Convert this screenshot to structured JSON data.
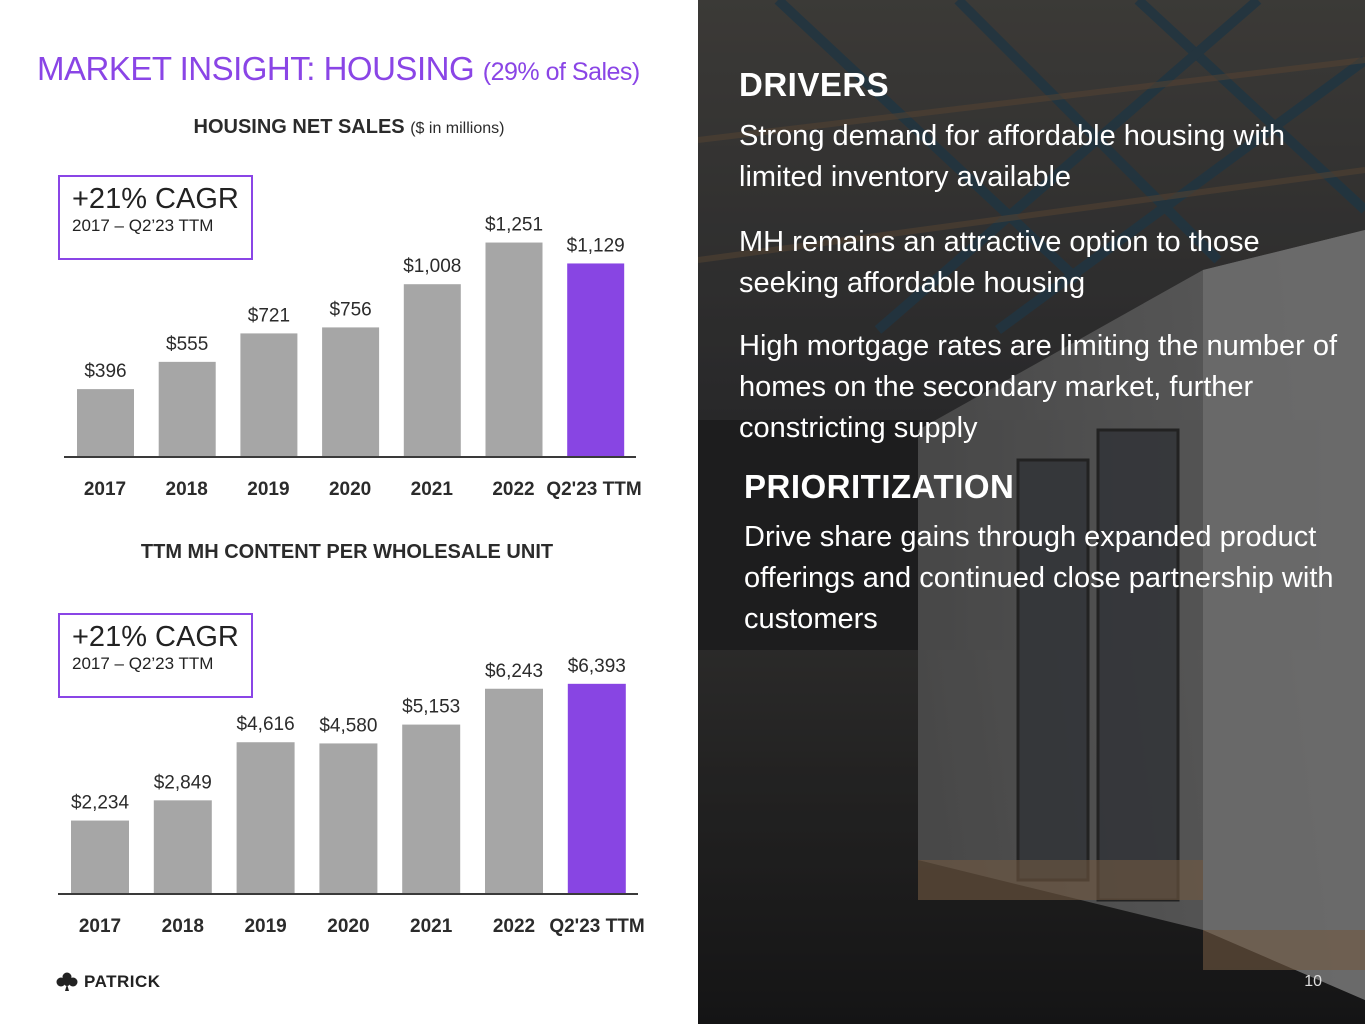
{
  "header": {
    "title": "MARKET INSIGHT: HOUSING",
    "title_sub": "(29% of Sales)"
  },
  "chart1": {
    "title": "HOUSING NET SALES",
    "title_unit": "($ in millions)",
    "cagr": "+21% CAGR",
    "cagr_period": "2017 – Q2’23 TTM"
  },
  "chart2": {
    "title": "TTM MH CONTENT PER WHOLESALE UNIT",
    "cagr": "+21% CAGR",
    "cagr_period": "2017 – Q2’23 TTM"
  },
  "chart_data": [
    {
      "type": "bar",
      "title": "HOUSING NET SALES ($ in millions)",
      "categories": [
        "2017",
        "2018",
        "2019",
        "2020",
        "2021",
        "2022",
        "Q2'23 TTM"
      ],
      "values": [
        396,
        555,
        721,
        756,
        1008,
        1251,
        1129
      ],
      "labels": [
        "$396",
        "$555",
        "$721",
        "$756",
        "$1,008",
        "$1,251",
        "$1,129"
      ],
      "ylim": [
        0,
        1400
      ],
      "highlight_index": 6,
      "colors": {
        "default": "#a6a6a6",
        "highlight": "#8845e3"
      }
    },
    {
      "type": "bar",
      "title": "TTM MH CONTENT PER WHOLESALE UNIT",
      "categories": [
        "2017",
        "2018",
        "2019",
        "2020",
        "2021",
        "2022",
        "Q2'23 TTM"
      ],
      "values": [
        2234,
        2849,
        4616,
        4580,
        5153,
        6243,
        6393
      ],
      "labels": [
        "$2,234",
        "$2,849",
        "$4,616",
        "$4,580",
        "$5,153",
        "$6,243",
        "$6,393"
      ],
      "ylim": [
        0,
        7300
      ],
      "highlight_index": 6,
      "colors": {
        "default": "#a6a6a6",
        "highlight": "#8845e3"
      }
    }
  ],
  "right": {
    "drivers_heading": "DRIVERS",
    "driver_1": "Strong demand for affordable housing with limited inventory available",
    "driver_2": "MH remains an attractive option to those seeking affordable housing",
    "driver_3": "High mortgage rates are limiting the number of homes on the secondary market, further constricting supply",
    "prioritization_heading": "PRIORITIZATION",
    "prioritization_text": "Drive share gains through expanded product offerings and continued close partnership with customers"
  },
  "footer": {
    "logo_text": "PATRICK",
    "page_number": "10"
  }
}
